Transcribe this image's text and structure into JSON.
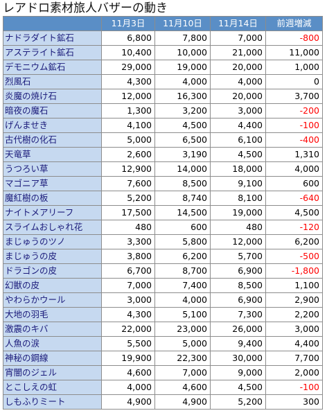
{
  "title": "レアドロ素材旅人バザーの動き",
  "colors": {
    "header_bg": "#5a8ec6",
    "name_bg": "#c6d9f0",
    "negative": "#ff0000"
  },
  "columns": [
    "11月3日",
    "11月10日",
    "11月14日",
    "前週増減"
  ],
  "rows": [
    {
      "name": "ナドラダイト鉱石",
      "d1": "6,800",
      "d2": "7,800",
      "d3": "7,000",
      "change": "-800"
    },
    {
      "name": "アステライト鉱石",
      "d1": "10,400",
      "d2": "10,000",
      "d3": "21,000",
      "change": "11,000"
    },
    {
      "name": "デモニウム鉱石",
      "d1": "29,000",
      "d2": "19,000",
      "d3": "20,000",
      "change": "1,000"
    },
    {
      "name": "烈風石",
      "d1": "4,300",
      "d2": "4,000",
      "d3": "4,000",
      "change": "0"
    },
    {
      "name": "炎魔の焼け石",
      "d1": "12,000",
      "d2": "16,300",
      "d3": "20,000",
      "change": "3,700"
    },
    {
      "name": "暗夜の魔石",
      "d1": "1,300",
      "d2": "3,200",
      "d3": "3,000",
      "change": "-200"
    },
    {
      "name": "げんませき",
      "d1": "4,100",
      "d2": "4,500",
      "d3": "4,400",
      "change": "-100"
    },
    {
      "name": "古代樹の化石",
      "d1": "5,000",
      "d2": "6,500",
      "d3": "6,100",
      "change": "-400"
    },
    {
      "name": "天竜草",
      "d1": "2,600",
      "d2": "3,190",
      "d3": "4,500",
      "change": "1,310"
    },
    {
      "name": "うつろい草",
      "d1": "12,900",
      "d2": "14,000",
      "d3": "18,000",
      "change": "4,000"
    },
    {
      "name": "マゴニア草",
      "d1": "7,600",
      "d2": "8,500",
      "d3": "9,100",
      "change": "600"
    },
    {
      "name": "魔紅樹の板",
      "d1": "5,200",
      "d2": "8,740",
      "d3": "8,100",
      "change": "-640"
    },
    {
      "name": "ナイトメアリーフ",
      "d1": "17,500",
      "d2": "14,500",
      "d3": "19,000",
      "change": "4,500"
    },
    {
      "name": "スライムおしゃれ花",
      "d1": "480",
      "d2": "600",
      "d3": "480",
      "change": "-120"
    },
    {
      "name": "まじゅうのツノ",
      "d1": "3,300",
      "d2": "5,800",
      "d3": "12,000",
      "change": "6,200"
    },
    {
      "name": "まじゅうの皮",
      "d1": "3,800",
      "d2": "6,200",
      "d3": "5,700",
      "change": "-500"
    },
    {
      "name": "ドラゴンの皮",
      "d1": "6,700",
      "d2": "8,700",
      "d3": "6,900",
      "change": "-1,800"
    },
    {
      "name": "幻獣の皮",
      "d1": "7,000",
      "d2": "7,400",
      "d3": "8,500",
      "change": "1,100"
    },
    {
      "name": "やわらかウール",
      "d1": "3,000",
      "d2": "4,000",
      "d3": "6,900",
      "change": "2,900"
    },
    {
      "name": "大地の羽毛",
      "d1": "4,300",
      "d2": "5,100",
      "d3": "7,300",
      "change": "2,200"
    },
    {
      "name": "激震のキバ",
      "d1": "22,000",
      "d2": "23,000",
      "d3": "26,000",
      "change": "3,000"
    },
    {
      "name": "人魚の涙",
      "d1": "5,500",
      "d2": "5,000",
      "d3": "9,400",
      "change": "4,400"
    },
    {
      "name": "神秘の鋼線",
      "d1": "19,900",
      "d2": "22,300",
      "d3": "30,000",
      "change": "7,700"
    },
    {
      "name": "宵闇のジェル",
      "d1": "4,600",
      "d2": "7,000",
      "d3": "9,000",
      "change": "2,000"
    },
    {
      "name": "とこしえの虹",
      "d1": "4,000",
      "d2": "4,600",
      "d3": "4,500",
      "change": "-100"
    },
    {
      "name": "しもふりミート",
      "d1": "4,900",
      "d2": "4,900",
      "d3": "5,200",
      "change": "300"
    }
  ]
}
